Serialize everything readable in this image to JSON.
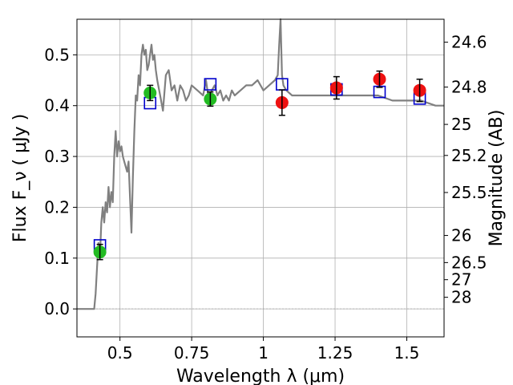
{
  "chart_data": {
    "type": "scatter",
    "xlabel": "Wavelength  λ (μm)",
    "ylabel": "Flux  F_ν  ( μJy )",
    "ylabel_right": "Magnitude (AB)",
    "xlim": [
      0.35,
      1.63
    ],
    "ylim": [
      -0.055,
      0.57
    ],
    "grid": true,
    "x_ticks": [
      {
        "v": 0.5,
        "label": "0.5"
      },
      {
        "v": 0.75,
        "label": "0.75"
      },
      {
        "v": 1.0,
        "label": "1"
      },
      {
        "v": 1.25,
        "label": "1.25"
      },
      {
        "v": 1.5,
        "label": "1.5"
      }
    ],
    "y_ticks": [
      {
        "v": 0.0,
        "label": "0.0"
      },
      {
        "v": 0.1,
        "label": "0.1"
      },
      {
        "v": 0.2,
        "label": "0.2"
      },
      {
        "v": 0.3,
        "label": "0.3"
      },
      {
        "v": 0.4,
        "label": "0.4"
      },
      {
        "v": 0.5,
        "label": "0.5"
      }
    ],
    "right_ticks": [
      {
        "mag": 24.6,
        "label": "24.6"
      },
      {
        "mag": 24.8,
        "label": "24.8"
      },
      {
        "mag": 25.0,
        "label": "25"
      },
      {
        "mag": 25.2,
        "label": "25.2"
      },
      {
        "mag": 25.5,
        "label": "25.5"
      },
      {
        "mag": 26.0,
        "label": "26"
      },
      {
        "mag": 26.5,
        "label": "26.5"
      },
      {
        "mag": 27.0,
        "label": "27"
      },
      {
        "mag": 28.0,
        "label": "28"
      }
    ],
    "model_spectrum": {
      "color": "#808080",
      "x": [
        0.35,
        0.405,
        0.41,
        0.415,
        0.42,
        0.425,
        0.43,
        0.435,
        0.44,
        0.445,
        0.45,
        0.455,
        0.46,
        0.465,
        0.47,
        0.475,
        0.48,
        0.485,
        0.49,
        0.495,
        0.5,
        0.505,
        0.51,
        0.515,
        0.52,
        0.525,
        0.53,
        0.535,
        0.54,
        0.545,
        0.55,
        0.555,
        0.56,
        0.565,
        0.57,
        0.575,
        0.58,
        0.585,
        0.59,
        0.595,
        0.6,
        0.605,
        0.61,
        0.615,
        0.62,
        0.625,
        0.63,
        0.64,
        0.65,
        0.66,
        0.67,
        0.68,
        0.69,
        0.7,
        0.71,
        0.72,
        0.73,
        0.74,
        0.75,
        0.77,
        0.79,
        0.8,
        0.81,
        0.82,
        0.83,
        0.84,
        0.85,
        0.86,
        0.87,
        0.88,
        0.89,
        0.9,
        0.92,
        0.94,
        0.96,
        0.98,
        1.0,
        1.02,
        1.04,
        1.05,
        1.055,
        1.06,
        1.065,
        1.07,
        1.08,
        1.1,
        1.15,
        1.2,
        1.25,
        1.3,
        1.35,
        1.4,
        1.45,
        1.5,
        1.55,
        1.6,
        1.63
      ],
      "y": [
        0.0,
        0.0,
        0.0,
        0.03,
        0.08,
        0.13,
        0.1,
        0.17,
        0.2,
        0.17,
        0.21,
        0.19,
        0.24,
        0.2,
        0.23,
        0.21,
        0.3,
        0.35,
        0.3,
        0.33,
        0.31,
        0.32,
        0.3,
        0.29,
        0.28,
        0.27,
        0.29,
        0.22,
        0.15,
        0.26,
        0.35,
        0.42,
        0.41,
        0.46,
        0.44,
        0.5,
        0.52,
        0.5,
        0.51,
        0.47,
        0.48,
        0.5,
        0.52,
        0.49,
        0.5,
        0.47,
        0.45,
        0.42,
        0.39,
        0.46,
        0.47,
        0.43,
        0.44,
        0.41,
        0.44,
        0.43,
        0.41,
        0.42,
        0.44,
        0.43,
        0.42,
        0.45,
        0.41,
        0.43,
        0.44,
        0.42,
        0.43,
        0.41,
        0.42,
        0.41,
        0.43,
        0.42,
        0.43,
        0.44,
        0.44,
        0.45,
        0.43,
        0.44,
        0.45,
        0.46,
        0.52,
        0.58,
        0.46,
        0.44,
        0.43,
        0.42,
        0.42,
        0.42,
        0.42,
        0.42,
        0.42,
        0.42,
        0.41,
        0.41,
        0.41,
        0.4,
        0.4
      ]
    },
    "photometry": [
      {
        "x": 0.43,
        "y": 0.112,
        "err": 0.015,
        "color": "#22bb22"
      },
      {
        "x": 0.605,
        "y": 0.425,
        "err": 0.015,
        "color": "#22bb22"
      },
      {
        "x": 0.815,
        "y": 0.413,
        "err": 0.014,
        "color": "#22bb22"
      },
      {
        "x": 1.065,
        "y": 0.406,
        "err": 0.025,
        "color": "#ee1111"
      },
      {
        "x": 1.255,
        "y": 0.435,
        "err": 0.022,
        "color": "#ee1111"
      },
      {
        "x": 1.405,
        "y": 0.452,
        "err": 0.016,
        "color": "#ee1111"
      },
      {
        "x": 1.545,
        "y": 0.43,
        "err": 0.022,
        "color": "#ee1111"
      }
    ],
    "model_photometry": {
      "color": "#0000cc",
      "points": [
        {
          "x": 0.43,
          "y": 0.125
        },
        {
          "x": 0.605,
          "y": 0.405
        },
        {
          "x": 0.815,
          "y": 0.442
        },
        {
          "x": 1.065,
          "y": 0.442
        },
        {
          "x": 1.255,
          "y": 0.432
        },
        {
          "x": 1.405,
          "y": 0.427
        },
        {
          "x": 1.545,
          "y": 0.414
        }
      ]
    }
  }
}
